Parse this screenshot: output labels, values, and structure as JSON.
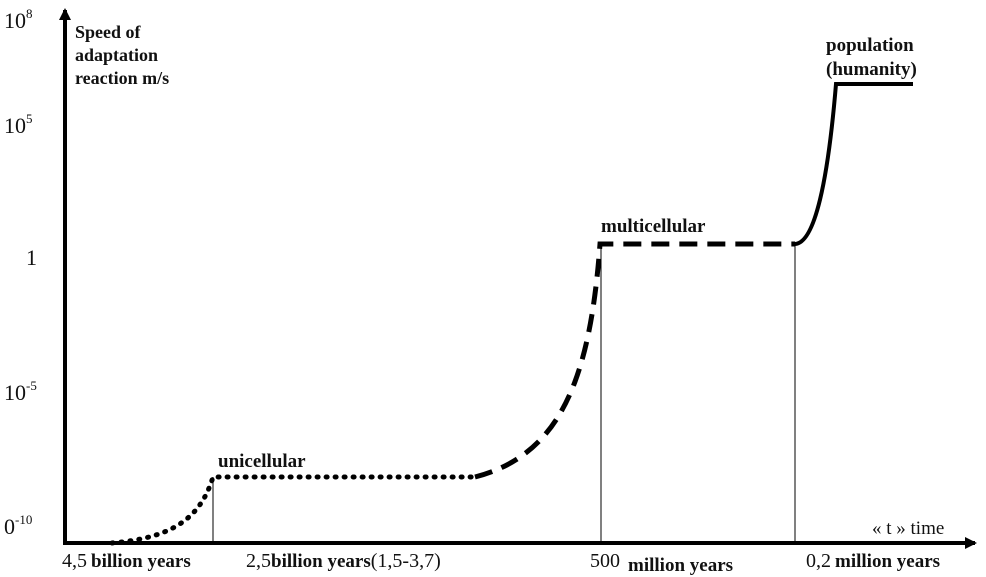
{
  "chart_data": {
    "type": "line",
    "ylabel": [
      "Speed of",
      "adaptation",
      "reaction m/s"
    ],
    "xlabel": "« t » time",
    "y_ticks": [
      {
        "base": "10",
        "exp": "8"
      },
      {
        "base": "10",
        "exp": "5"
      },
      {
        "base": "1",
        "exp": ""
      },
      {
        "base": "10",
        "exp": "-5"
      },
      {
        "base": "0",
        "exp": "-10"
      }
    ],
    "x_ticks": [
      {
        "num": "4,5",
        "unit": "billion years",
        "suffix": ""
      },
      {
        "num": "2,5",
        "unit": "billion years",
        "suffix": "(1,5-3,7)"
      },
      {
        "num": "500",
        "unit": "million years",
        "suffix": ""
      },
      {
        "num": "0,2",
        "unit": "million years",
        "suffix": ""
      }
    ],
    "stages": [
      {
        "name": "unicellular",
        "line_style": "dotted"
      },
      {
        "name": "multicellular",
        "line_style": "dashed"
      },
      {
        "name": "population",
        "name2": "(humanity)",
        "line_style": "solid"
      }
    ]
  }
}
